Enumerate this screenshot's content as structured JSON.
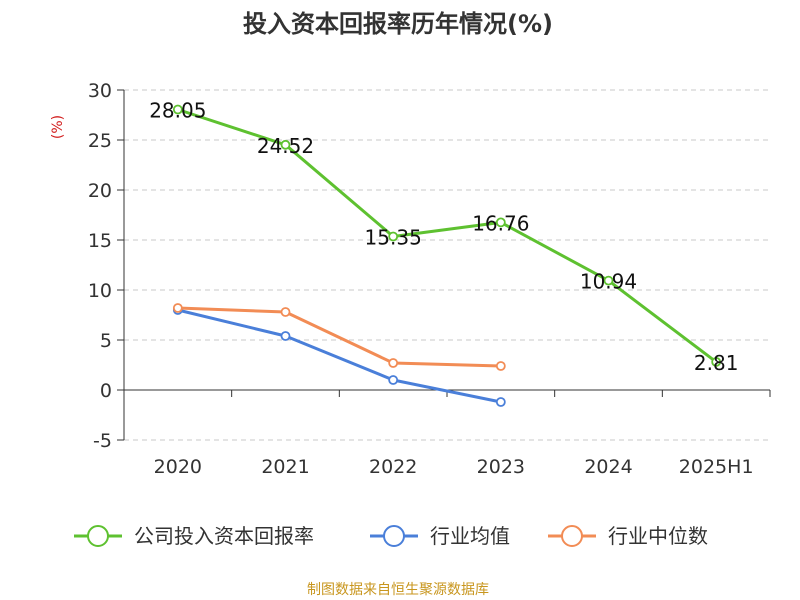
{
  "chart_data": {
    "type": "line",
    "title": "投入资本回报率历年情况(%)",
    "ylabel": "(%)",
    "categories": [
      "2020",
      "2021",
      "2022",
      "2023",
      "2024",
      "2025H1"
    ],
    "ylim": [
      -5,
      30
    ],
    "yticks": [
      -5,
      0,
      5,
      10,
      15,
      20,
      25,
      30
    ],
    "grid": true,
    "legend_position": "bottom",
    "series": [
      {
        "name": "公司投入资本回报率",
        "color": "#5ec130",
        "values": [
          28.05,
          24.52,
          15.35,
          16.76,
          10.94,
          2.81
        ],
        "labels": [
          "28.05",
          "24.52",
          "15.35",
          "16.76",
          "10.94",
          "2.81"
        ],
        "show_labels": true
      },
      {
        "name": "行业均值",
        "color": "#4a7fd9",
        "values": [
          8.0,
          5.4,
          1.0,
          -1.2,
          null,
          null
        ],
        "show_labels": false
      },
      {
        "name": "行业中位数",
        "color": "#f28c55",
        "values": [
          8.2,
          7.8,
          2.7,
          2.4,
          null,
          null
        ],
        "show_labels": false
      }
    ]
  },
  "footer": {
    "source": "制图数据来自恒生聚源数据库"
  }
}
